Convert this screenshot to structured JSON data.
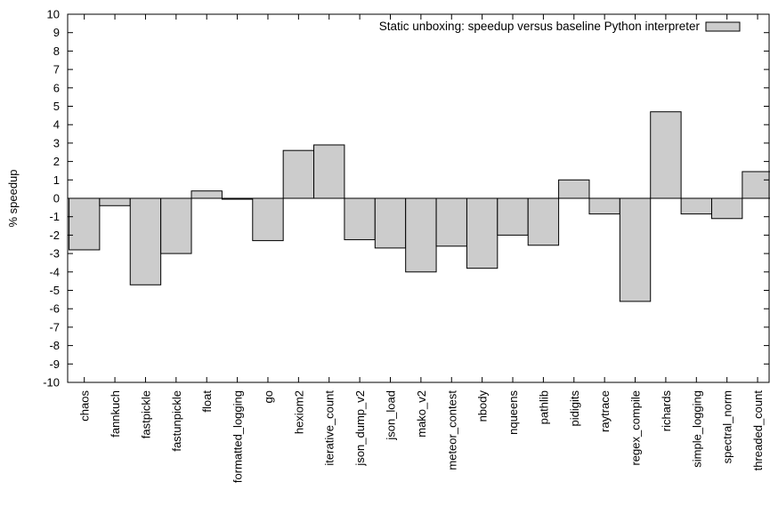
{
  "chart_data": {
    "type": "bar",
    "title": "",
    "xlabel": "",
    "ylabel": "% speedup",
    "ylim": [
      -10,
      10
    ],
    "yticks": [
      -10,
      -9,
      -8,
      -7,
      -6,
      -5,
      -4,
      -3,
      -2,
      -1,
      0,
      1,
      2,
      3,
      4,
      5,
      6,
      7,
      8,
      9,
      10
    ],
    "legend_position": "top-right",
    "grid": false,
    "bar_color": "#cccccc",
    "series": [
      {
        "name": "Static unboxing: speedup versus baseline Python interpreter",
        "values": [
          -2.8,
          -0.4,
          -4.7,
          -3.0,
          0.4,
          -0.05,
          -2.3,
          2.6,
          2.9,
          -2.25,
          -2.7,
          -4.0,
          -2.6,
          -3.8,
          -2.0,
          -2.55,
          1.0,
          -0.85,
          -5.6,
          4.7,
          -0.85,
          -1.1,
          1.45
        ]
      }
    ],
    "categories": [
      "chaos",
      "fannkuch",
      "fastpickle",
      "fastunpickle",
      "float",
      "formatted_logging",
      "go",
      "hexiom2",
      "iterative_count",
      "json_dump_v2",
      "json_load",
      "mako_v2",
      "meteor_contest",
      "nbody",
      "nqueens",
      "pathlib",
      "pidigits",
      "raytrace",
      "regex_compile",
      "richards",
      "simple_logging",
      "spectral_norm",
      "threaded_count"
    ]
  }
}
